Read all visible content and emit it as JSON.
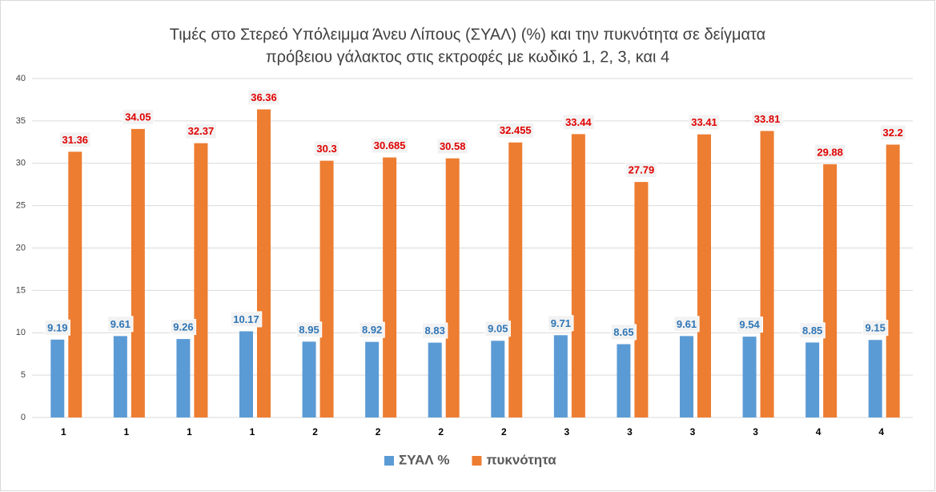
{
  "chart_data": {
    "type": "bar",
    "title": [
      "Τιμές στο Στερεό Υπόλειμμα Άνευ Λίπους (ΣΥΑΛ) (%) και την πυκνότητα σε δείγματα",
      "πρόβειου γάλακτος στις εκτροφές με κωδικό 1, 2, 3, και 4"
    ],
    "categories": [
      "1",
      "1",
      "1",
      "1",
      "2",
      "2",
      "2",
      "2",
      "3",
      "3",
      "3",
      "3",
      "4",
      "4"
    ],
    "series": [
      {
        "name": "ΣΥΑΛ %",
        "color": "#5b9bd5",
        "values": [
          9.19,
          9.61,
          9.26,
          10.17,
          8.95,
          8.92,
          8.83,
          9.05,
          9.71,
          8.65,
          9.61,
          9.54,
          8.85,
          9.15
        ]
      },
      {
        "name": "πυκνότητα",
        "color": "#ed7d31",
        "values": [
          31.36,
          34.05,
          32.37,
          36.36,
          30.3,
          30.685,
          30.58,
          32.455,
          33.44,
          27.79,
          33.41,
          33.81,
          29.88,
          32.2
        ]
      }
    ],
    "ylim": [
      0,
      40
    ],
    "yticks": [
      0,
      5,
      10,
      15,
      20,
      25,
      30,
      35,
      40
    ],
    "grid": true,
    "legend": "bottom"
  }
}
